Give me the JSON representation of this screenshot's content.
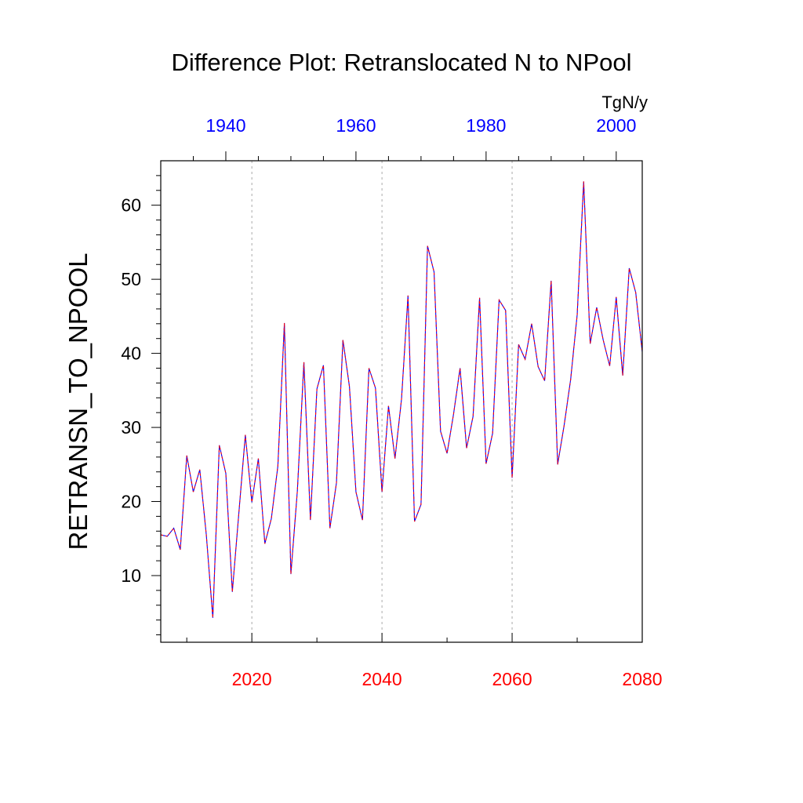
{
  "chart_data": {
    "type": "line",
    "title": "Difference Plot: Retranslocated N to NPool",
    "units": "TgN/y",
    "ylabel": "RETRANSN_TO_NPOOL",
    "ylim": [
      1,
      66
    ],
    "yticks": [
      10,
      20,
      30,
      40,
      50,
      60
    ],
    "ytick_labels": [
      "10",
      "20",
      "30",
      "40",
      "50",
      "60"
    ],
    "x_bottom": {
      "range": [
        2006,
        2080
      ],
      "ticks": [
        2020,
        2040,
        2060,
        2080
      ],
      "tick_labels": [
        "2020",
        "2040",
        "2060",
        "2080"
      ],
      "color": "#ff0000"
    },
    "x_top": {
      "range": [
        1930,
        2004
      ],
      "ticks": [
        1940,
        1960,
        1980,
        2000
      ],
      "tick_labels": [
        "1940",
        "1960",
        "1980",
        "2000"
      ],
      "color": "#0000ff"
    },
    "grid": "vertical dashed at 2020, 2040, 2060",
    "series": [
      {
        "color": "#0000ff",
        "x": [
          2006,
          2007,
          2008,
          2009,
          2010,
          2011,
          2012,
          2013,
          2014,
          2015,
          2016,
          2017,
          2018,
          2019,
          2020,
          2021,
          2022,
          2023,
          2024,
          2025,
          2026,
          2027,
          2028,
          2029,
          2030,
          2031,
          2032,
          2033,
          2034,
          2035,
          2036,
          2037,
          2038,
          2039,
          2040,
          2041,
          2042,
          2043,
          2044,
          2045,
          2046,
          2047,
          2048,
          2049,
          2050,
          2051,
          2052,
          2053,
          2054,
          2055,
          2056,
          2057,
          2058,
          2059,
          2060,
          2061,
          2062,
          2063,
          2064,
          2065,
          2066,
          2067,
          2068,
          2069,
          2070,
          2071,
          2072,
          2073,
          2074,
          2075,
          2076,
          2077,
          2078,
          2079,
          2080
        ],
        "y": [
          15.5,
          15.3,
          16.4,
          13.5,
          26.2,
          21.3,
          24.3,
          15.5,
          4.3,
          27.6,
          23.8,
          7.8,
          18.4,
          29.0,
          19.9,
          25.8,
          14.3,
          17.7,
          24.8,
          44.1,
          10.2,
          21.5,
          38.8,
          17.5,
          35.2,
          38.4,
          16.4,
          22.5,
          41.8,
          35.5,
          21.3,
          17.5,
          38.0,
          35.3,
          21.3,
          32.9,
          25.8,
          33.8,
          47.8,
          17.3,
          19.6,
          54.5,
          51.0,
          29.5,
          26.5,
          31.8,
          38.0,
          27.2,
          31.5,
          47.5,
          25.1,
          29.2,
          47.2,
          45.8,
          23.2,
          41.2,
          39.2,
          44.0,
          38.2,
          36.3,
          49.8,
          25.0,
          30.3,
          36.5,
          45.2,
          63.2,
          41.3,
          46.2,
          41.8,
          38.3,
          47.6,
          37.0,
          51.5,
          48.2,
          40.2
        ]
      },
      {
        "color": "#ff0000",
        "x": [
          2006,
          2007,
          2008,
          2009,
          2010,
          2011,
          2012,
          2013,
          2014,
          2015,
          2016,
          2017,
          2018,
          2019,
          2020,
          2021,
          2022,
          2023,
          2024,
          2025,
          2026,
          2027,
          2028,
          2029,
          2030,
          2031,
          2032,
          2033,
          2034,
          2035,
          2036,
          2037,
          2038,
          2039,
          2040,
          2041,
          2042,
          2043,
          2044,
          2045,
          2046,
          2047,
          2048,
          2049,
          2050,
          2051,
          2052,
          2053,
          2054,
          2055,
          2056,
          2057,
          2058,
          2059,
          2060,
          2061,
          2062,
          2063,
          2064,
          2065,
          2066,
          2067,
          2068,
          2069,
          2070,
          2071,
          2072,
          2073,
          2074,
          2075,
          2076,
          2077,
          2078,
          2079,
          2080
        ],
        "y": [
          15.5,
          15.3,
          16.4,
          13.5,
          26.2,
          21.3,
          24.3,
          15.5,
          4.3,
          27.6,
          23.8,
          7.8,
          18.4,
          29.0,
          19.9,
          25.8,
          14.3,
          17.7,
          24.8,
          44.1,
          10.2,
          21.5,
          38.8,
          17.5,
          35.2,
          38.4,
          16.4,
          22.5,
          41.8,
          35.5,
          21.3,
          17.5,
          38.0,
          35.3,
          21.3,
          32.9,
          25.8,
          33.8,
          47.8,
          17.3,
          19.6,
          54.5,
          51.0,
          29.5,
          26.5,
          31.8,
          38.0,
          27.2,
          31.5,
          47.5,
          25.1,
          29.2,
          47.2,
          45.8,
          23.2,
          41.2,
          39.2,
          44.0,
          38.2,
          36.3,
          49.8,
          25.0,
          30.3,
          36.5,
          45.2,
          63.2,
          41.3,
          46.2,
          41.8,
          38.3,
          47.6,
          37.0,
          51.5,
          48.2,
          40.2
        ]
      }
    ]
  }
}
